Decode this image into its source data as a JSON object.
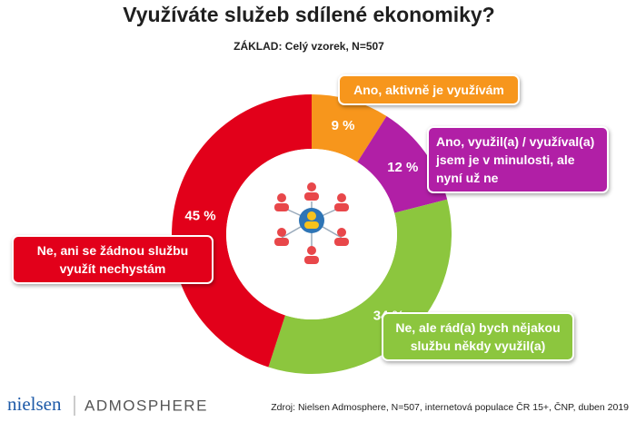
{
  "chart_data": {
    "type": "donut",
    "title": "Využíváte služeb sdílené ekonomiky?",
    "subtitle": "ZÁKLAD: Celý vzorek, N=507",
    "categories": [
      "Ano, aktivně je využívám",
      "Ano, využil(a) / využíval(a) jsem je v minulosti, ale nyní už ne",
      "Ne, ale rád(a) bych nějakou službu někdy využil(a)",
      "Ne, ani se žádnou službu využít nechystám"
    ],
    "values": [
      9,
      12,
      34,
      45
    ],
    "value_labels": [
      "9 %",
      "12 %",
      "34 %",
      "45 %"
    ],
    "colors": [
      "#f7961c",
      "#b11fa6",
      "#8cc63e",
      "#e2001a"
    ],
    "source": "Zdroj: Nielsen Admosphere, N=507, internetová populace ČR 15+, ČNP, duben 2019",
    "logos": [
      "nielsen",
      "ADMOSPHERE"
    ]
  }
}
